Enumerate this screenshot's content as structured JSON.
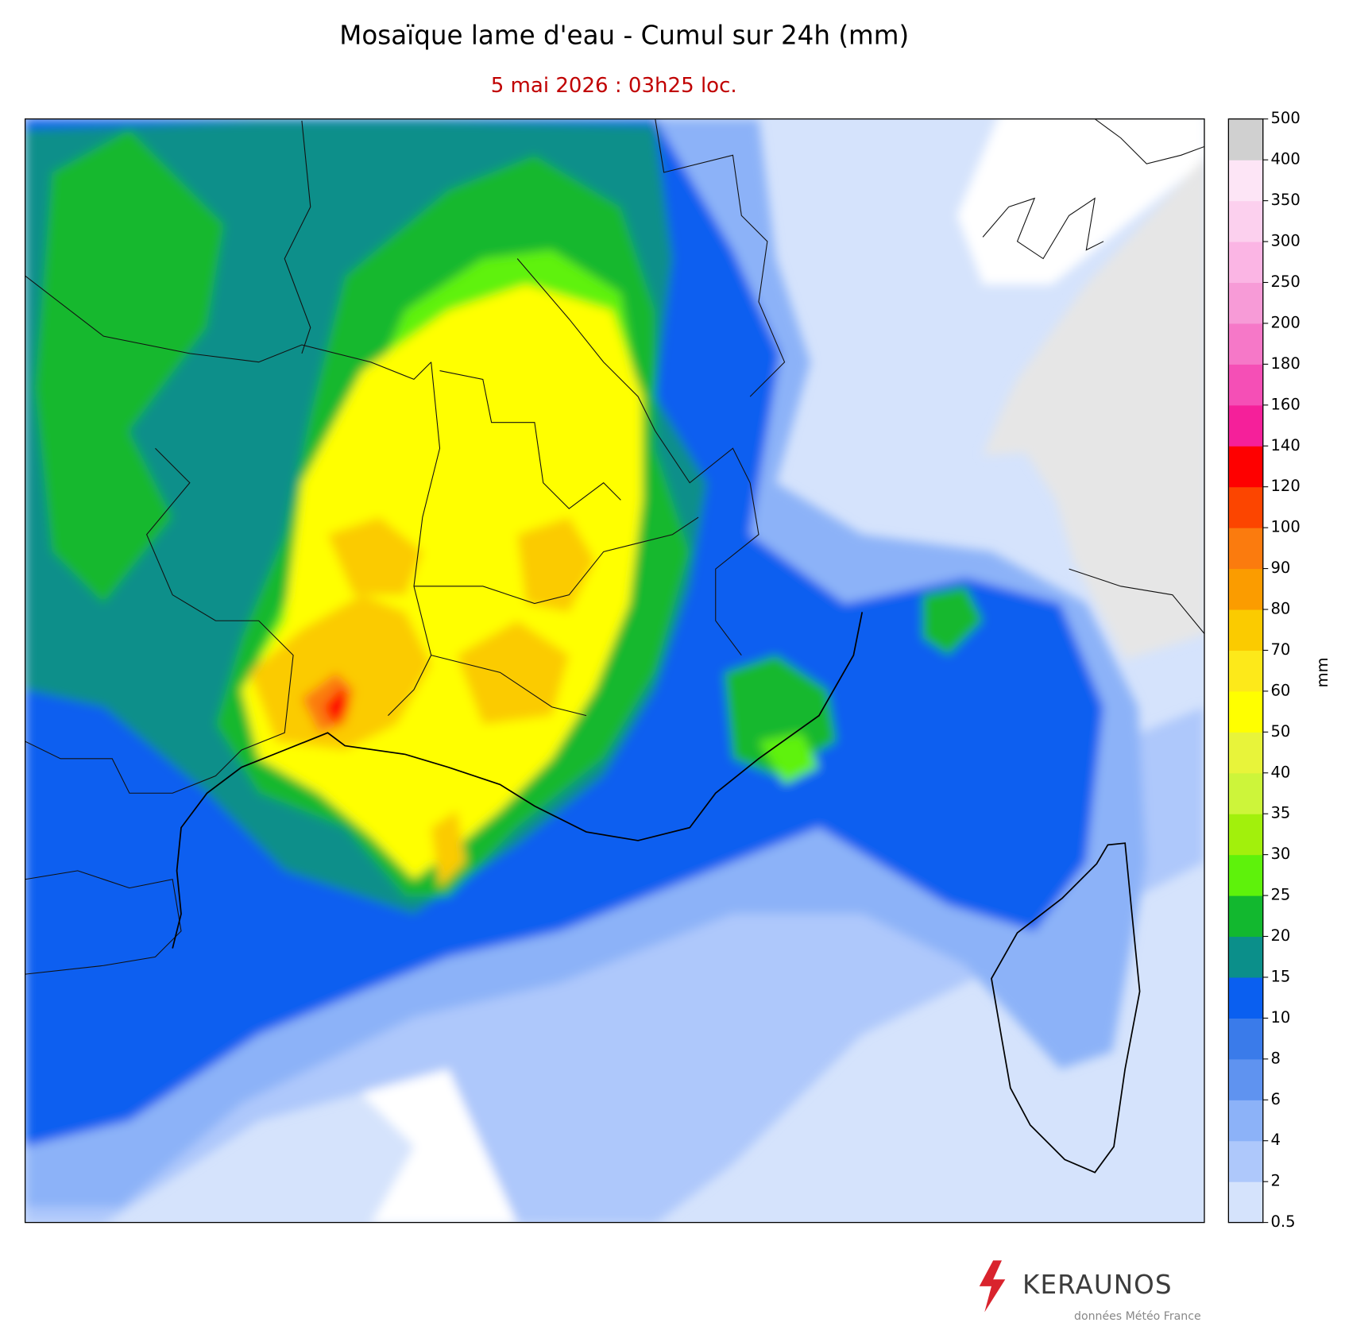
{
  "title": "Mosaïque lame d'eau - Cumul sur 24h (mm)",
  "subtitle": "5 mai 2026 : 03h25 loc.",
  "colorbar": {
    "label": "mm",
    "ticks": [
      0.5,
      2,
      4,
      6,
      8,
      10,
      15,
      20,
      25,
      30,
      35,
      40,
      50,
      60,
      70,
      80,
      90,
      100,
      120,
      140,
      160,
      180,
      200,
      250,
      300,
      350,
      400,
      500
    ],
    "colors": [
      "#d5e3fc",
      "#aec8fb",
      "#8cb2f8",
      "#5f93f0",
      "#3a7bea",
      "#0a5ff0",
      "#0b8f8a",
      "#12b82f",
      "#5ef20b",
      "#a2f00c",
      "#cdf53a",
      "#e8f43a",
      "#ffff00",
      "#fde91a",
      "#fbcb00",
      "#fb9c00",
      "#fb7b0e",
      "#fc4500",
      "#fe0000",
      "#f5209a",
      "#f54fb6",
      "#f678c8",
      "#f79bd7",
      "#fbb5e4",
      "#fcd0ee",
      "#fde5f6",
      "#d0d0d0"
    ]
  },
  "footer": {
    "brand": "KERAUNOS",
    "credit": "données Météo France"
  }
}
